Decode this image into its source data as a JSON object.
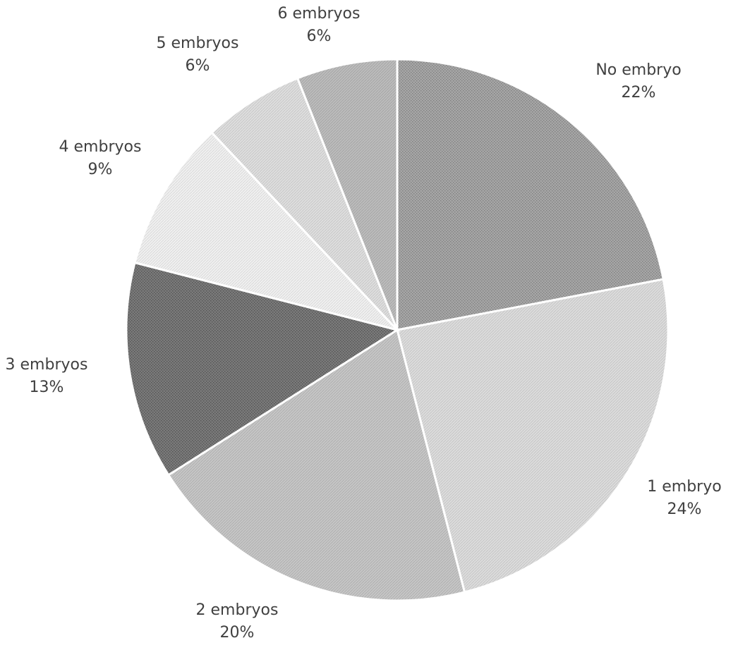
{
  "chart_data": {
    "type": "pie",
    "title": "",
    "legend": "none",
    "slices": [
      {
        "label": "No embryo",
        "value": 22,
        "display": "22%",
        "color": "#a6a6a6",
        "pattern": "dense-dots"
      },
      {
        "label": "1 embryo",
        "value": 24,
        "display": "24%",
        "color": "#dcdcdc",
        "pattern": "light-diag"
      },
      {
        "label": "2 embryos",
        "value": 20,
        "display": "20%",
        "color": "#c6c6c6",
        "pattern": "medium-diag"
      },
      {
        "label": "3 embryos",
        "value": 13,
        "display": "13%",
        "color": "#7a7a7a",
        "pattern": "dark-dots"
      },
      {
        "label": "4 embryos",
        "value": 9,
        "display": "9%",
        "color": "#f0f0f0",
        "pattern": "very-light"
      },
      {
        "label": "5 embryos",
        "value": 6,
        "display": "6%",
        "color": "#dedede",
        "pattern": "light-diag"
      },
      {
        "label": "6 embryos",
        "value": 6,
        "display": "6%",
        "color": "#bcbcbc",
        "pattern": "medium-diag"
      }
    ]
  }
}
